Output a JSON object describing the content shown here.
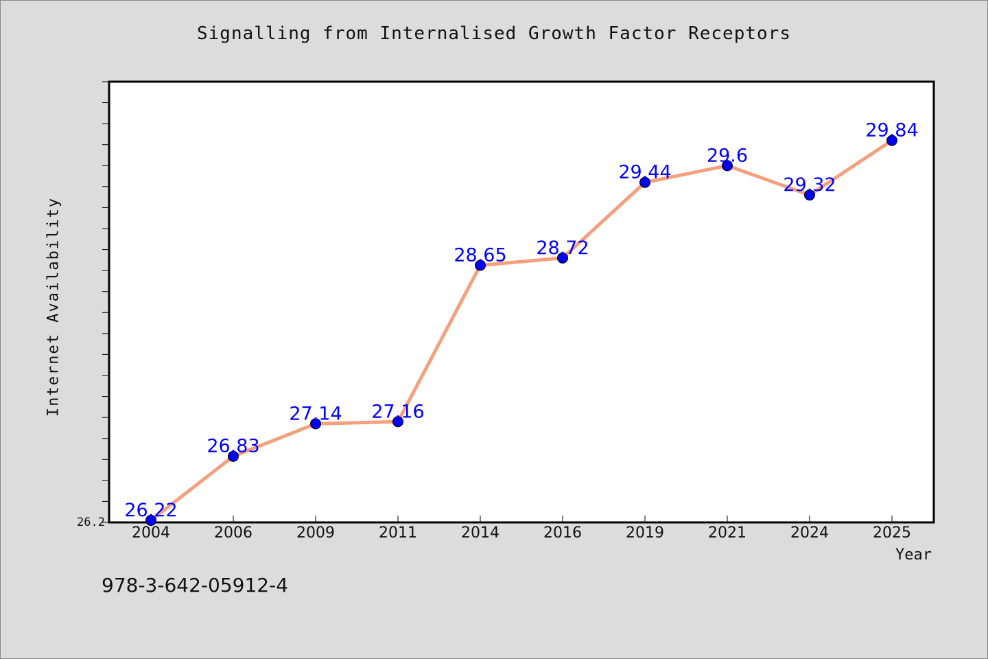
{
  "chart_data": {
    "type": "line",
    "title": "Signalling from Internalised Growth Factor Receptors",
    "xlabel": "Year",
    "ylabel": "Internet Availability",
    "categories": [
      "2004",
      "2006",
      "2009",
      "2011",
      "2014",
      "2016",
      "2019",
      "2021",
      "2024",
      "2025"
    ],
    "series": [
      {
        "values": [
          26.22,
          26.83,
          27.14,
          27.16,
          28.65,
          28.72,
          29.44,
          29.6,
          29.32,
          29.84
        ]
      }
    ],
    "ylim": [
      26.2,
      30.4
    ],
    "y_tick_labels": [
      "26.2"
    ],
    "grid": false,
    "data_labels": true,
    "colors": {
      "line": "#f4a07f",
      "marker": "#0000ee",
      "label": "#0000ff",
      "background": "#dcdcdc",
      "plot_area": "#ffffff"
    }
  },
  "footer_text": "978-3-642-05912-4"
}
